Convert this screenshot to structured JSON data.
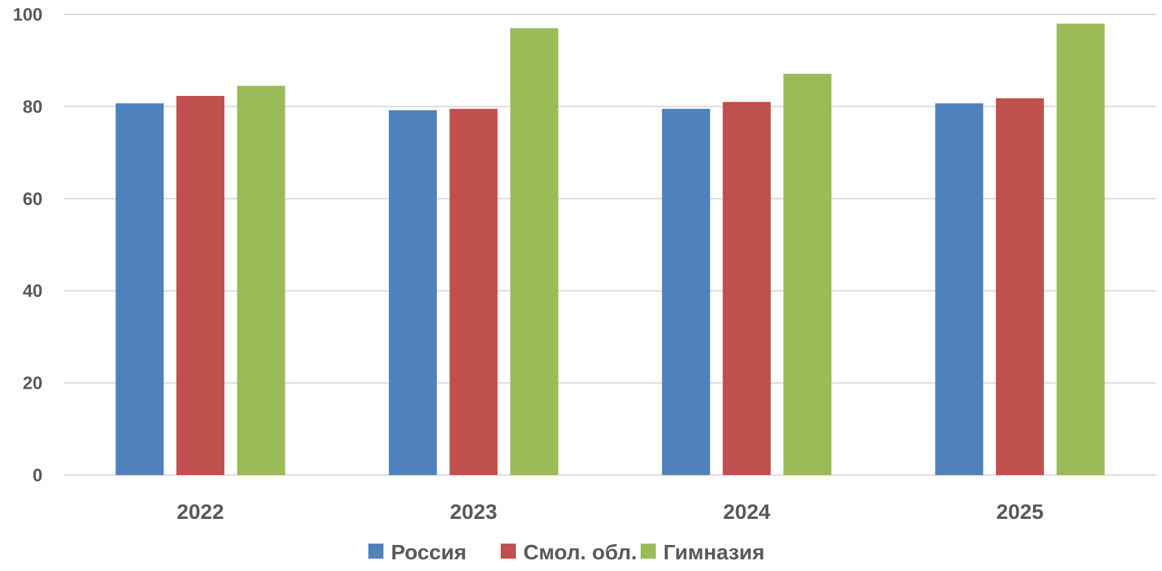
{
  "chart_data": {
    "type": "bar",
    "categories": [
      "2022",
      "2023",
      "2024",
      "2025"
    ],
    "series": [
      {
        "name": "Россия",
        "color": "#4F81BD",
        "values": [
          80.7,
          79.2,
          79.5,
          80.7
        ]
      },
      {
        "name": "Смол. обл.",
        "color": "#C0504D",
        "values": [
          82.3,
          79.5,
          81.0,
          81.8
        ]
      },
      {
        "name": "Гимназия",
        "color": "#9BBB59",
        "values": [
          84.5,
          97.0,
          87.1,
          98.0
        ]
      }
    ],
    "title": "",
    "xlabel": "",
    "ylabel": "",
    "ylim": [
      0,
      100
    ],
    "yticks": [
      "0",
      "20",
      "40",
      "60",
      "80",
      "100"
    ],
    "grid": true,
    "legend_position": "bottom"
  }
}
